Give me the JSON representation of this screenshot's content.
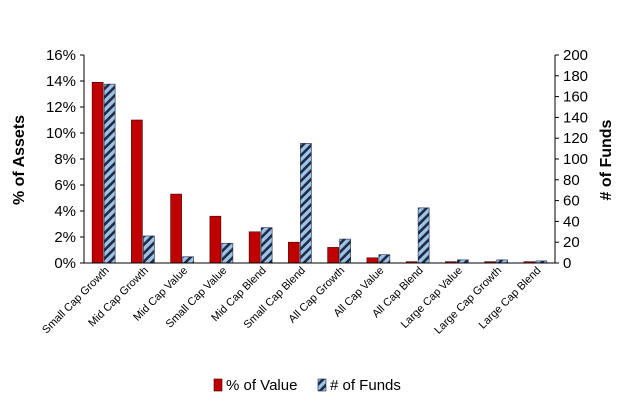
{
  "chart_data": {
    "type": "bar",
    "categories": [
      "Small Cap Growth",
      "Mid Cap Growth",
      "Mid Cap Value",
      "Small Cap Value",
      "Mid Cap Blend",
      "Small Cap Blend",
      "All Cap Growth",
      "All Cap Value",
      "All Cap Blend",
      "Large Cap Value",
      "Large Cap Growth",
      "Large Cap Blend"
    ],
    "series": [
      {
        "name": "% of Value",
        "axis": "left",
        "color": "#c00000",
        "values": [
          13.9,
          11.0,
          5.3,
          3.6,
          2.4,
          1.6,
          1.2,
          0.4,
          0.1,
          0.1,
          0.1,
          0.1
        ]
      },
      {
        "name": "# of Funds",
        "axis": "right",
        "color": "#9dc3e6",
        "pattern": "diagonal-stripes",
        "values": [
          172,
          26,
          6,
          19,
          34,
          115,
          23,
          8,
          53,
          3,
          3,
          2
        ]
      }
    ],
    "ylabel": "% of Assets",
    "y2label": "# of Funds",
    "ylim": [
      0,
      16
    ],
    "y2lim": [
      0,
      200
    ],
    "yticks": [
      "0%",
      "2%",
      "4%",
      "6%",
      "8%",
      "10%",
      "12%",
      "14%",
      "16%"
    ],
    "y2ticks": [
      "0",
      "20",
      "40",
      "60",
      "80",
      "100",
      "120",
      "140",
      "160",
      "180",
      "200"
    ],
    "legend_position": "bottom",
    "grid": false
  }
}
